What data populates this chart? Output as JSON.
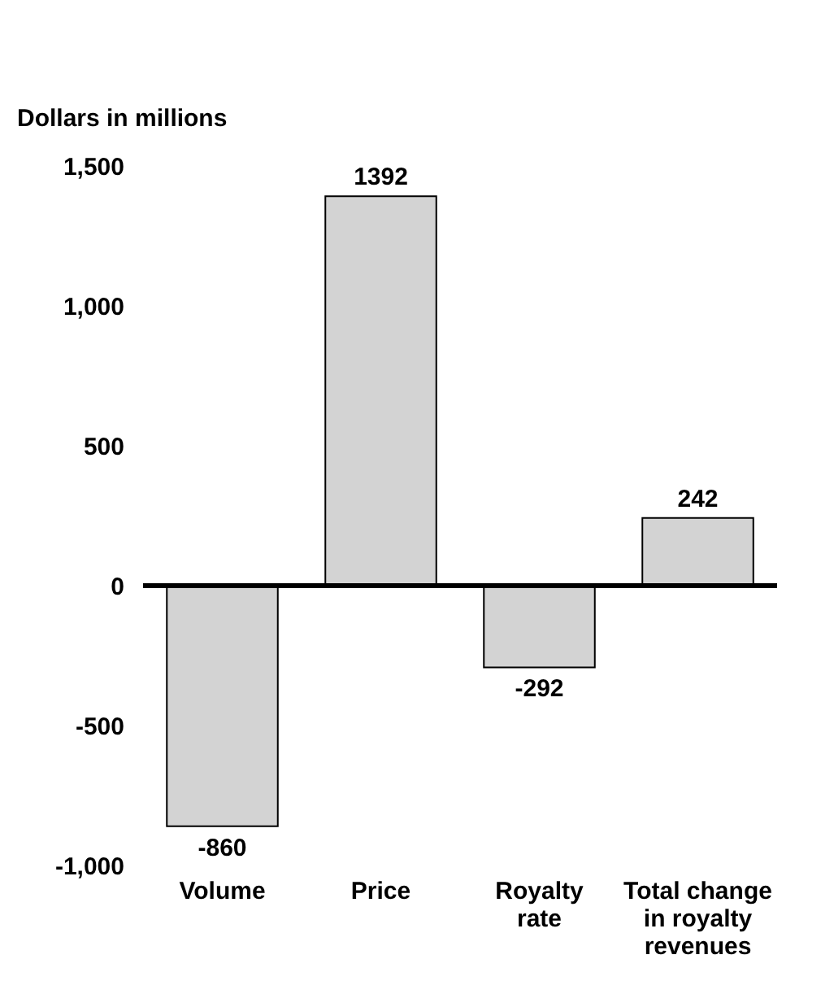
{
  "chart_data": {
    "type": "bar",
    "ylabel": "Dollars in millions",
    "categories": [
      "Volume",
      "Price",
      "Royalty\nrate",
      "Total change\nin royalty\nrevenues"
    ],
    "values": [
      -860,
      1392,
      -292,
      242
    ],
    "color": "#d3d3d3",
    "ylim": [
      -1000,
      1500
    ],
    "yticks": [
      {
        "value": -1000,
        "label": "-1,000"
      },
      {
        "value": -500,
        "label": "-500"
      },
      0,
      500,
      {
        "value": 1000,
        "label": "1,000"
      },
      {
        "value": 1500,
        "label": "1,500"
      }
    ],
    "ref_lines": [
      {
        "axis": "y",
        "value": 0,
        "color": "#000000"
      }
    ],
    "data_labels": true,
    "grid": false
  }
}
